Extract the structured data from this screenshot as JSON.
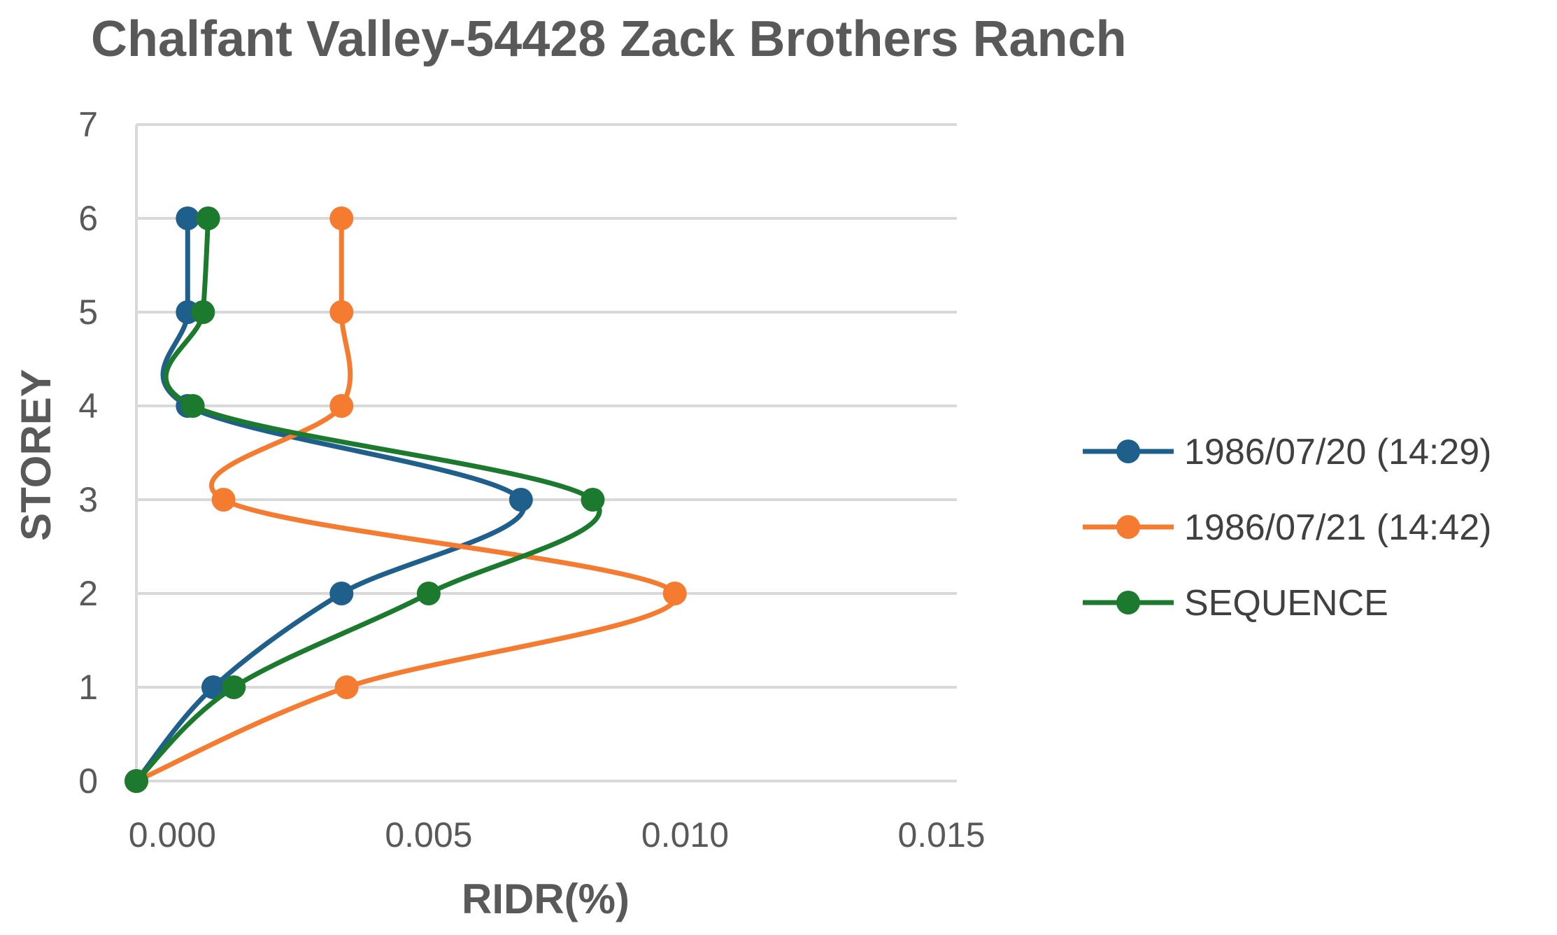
{
  "chart_data": {
    "type": "line",
    "title": "Chalfant Valley-54428 Zack Brothers Ranch",
    "xlabel": "RIDR(%)",
    "ylabel": "STOREY",
    "xlim": [
      0.0,
      0.015
    ],
    "ylim": [
      0,
      7
    ],
    "x_ticks": [
      "0.000",
      "0.005",
      "0.010",
      "0.015"
    ],
    "y_ticks": [
      "0",
      "1",
      "2",
      "3",
      "4",
      "5",
      "6",
      "7"
    ],
    "grid": true,
    "legend_position": "right",
    "series": [
      {
        "name": "1986/07/20 (14:29)",
        "color": "#1f5f8b",
        "points": [
          {
            "x": -0.0007,
            "y": 0
          },
          {
            "x": 0.0008,
            "y": 1
          },
          {
            "x": 0.0033,
            "y": 2
          },
          {
            "x": 0.0068,
            "y": 3
          },
          {
            "x": 0.0003,
            "y": 4
          },
          {
            "x": 0.0003,
            "y": 5
          },
          {
            "x": 0.0003,
            "y": 6
          }
        ]
      },
      {
        "name": "1986/07/21 (14:42)",
        "color": "#f47b2f",
        "points": [
          {
            "x": -0.0007,
            "y": 0
          },
          {
            "x": 0.0034,
            "y": 1
          },
          {
            "x": 0.0098,
            "y": 2
          },
          {
            "x": 0.001,
            "y": 3
          },
          {
            "x": 0.0033,
            "y": 4
          },
          {
            "x": 0.0033,
            "y": 5
          },
          {
            "x": 0.0033,
            "y": 6
          }
        ]
      },
      {
        "name": "SEQUENCE",
        "color": "#1c7a2e",
        "points": [
          {
            "x": -0.0007,
            "y": 0
          },
          {
            "x": 0.0012,
            "y": 1
          },
          {
            "x": 0.005,
            "y": 2
          },
          {
            "x": 0.0082,
            "y": 3
          },
          {
            "x": 0.0004,
            "y": 4
          },
          {
            "x": 0.0006,
            "y": 5
          },
          {
            "x": 0.0007,
            "y": 6
          }
        ]
      }
    ]
  }
}
